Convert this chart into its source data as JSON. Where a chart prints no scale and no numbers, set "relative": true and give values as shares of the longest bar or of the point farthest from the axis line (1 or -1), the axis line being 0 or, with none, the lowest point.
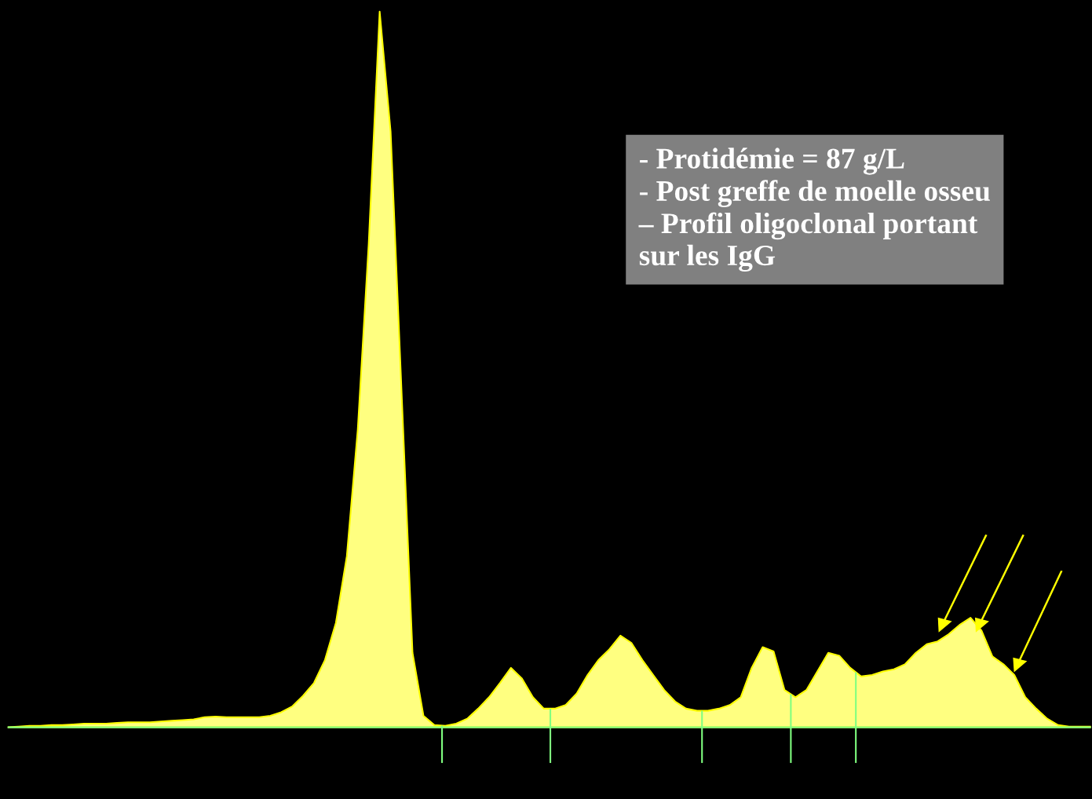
{
  "chart_data": {
    "type": "area",
    "relative": true,
    "categories": [
      null,
      null,
      null,
      null,
      null,
      null,
      null,
      null,
      null,
      null,
      null,
      null,
      null,
      null,
      null,
      null,
      null,
      null,
      null,
      null,
      null,
      null,
      null,
      null,
      null,
      null,
      null,
      null,
      null,
      null,
      null,
      null,
      null,
      null,
      null,
      null,
      null,
      null,
      null,
      null,
      null,
      null,
      null,
      null,
      null,
      null,
      null,
      null,
      null,
      null,
      null,
      null,
      null,
      null,
      null,
      null,
      null,
      null,
      null,
      null,
      null,
      null,
      null,
      null,
      null,
      null,
      null,
      null,
      null,
      null,
      null,
      null,
      null,
      null,
      null,
      null,
      null,
      null,
      null,
      null,
      null,
      null,
      null,
      null,
      null,
      null,
      null,
      null,
      null,
      null,
      null,
      null,
      null,
      null,
      null,
      null,
      null,
      null,
      null,
      null
    ],
    "series": [
      {
        "color": "#ffff80",
        "values": [
          0,
          0.001,
          0.002,
          0.002,
          0.003,
          0.003,
          0.004,
          0.005,
          0.005,
          0.005,
          0.006,
          0.007,
          0.007,
          0.007,
          0.008,
          0.009,
          0.01,
          0.011,
          0.014,
          0.015,
          0.014,
          0.014,
          0.014,
          0.014,
          0.016,
          0.021,
          0.029,
          0.044,
          0.062,
          0.094,
          0.146,
          0.239,
          0.416,
          0.676,
          1,
          0.832,
          0.468,
          0.104,
          0.016,
          0.003,
          0.002,
          0.005,
          0.012,
          0.026,
          0.042,
          0.062,
          0.083,
          0.068,
          0.042,
          0.026,
          0.026,
          0.031,
          0.047,
          0.073,
          0.094,
          0.109,
          0.128,
          0.118,
          0.094,
          0.073,
          0.052,
          0.036,
          0.026,
          0.023,
          0.023,
          0.026,
          0.031,
          0.042,
          0.083,
          0.112,
          0.106,
          0.052,
          0.042,
          0.052,
          0.078,
          0.104,
          0.1,
          0.083,
          0.071,
          0.073,
          0.078,
          0.081,
          0.088,
          0.104,
          0.116,
          0.12,
          0.13,
          0.143,
          0.153,
          0.135,
          0.099,
          0.088,
          0.073,
          0.042,
          0.026,
          0.012,
          0.003,
          0.001,
          0.001,
          0.001
        ]
      }
    ],
    "annotations": [
      "- Protidémie = 87 g/L",
      "- Post greffe de moelle osseu",
      "– Profil oligoclonal portant",
      "sur les IgG"
    ]
  }
}
